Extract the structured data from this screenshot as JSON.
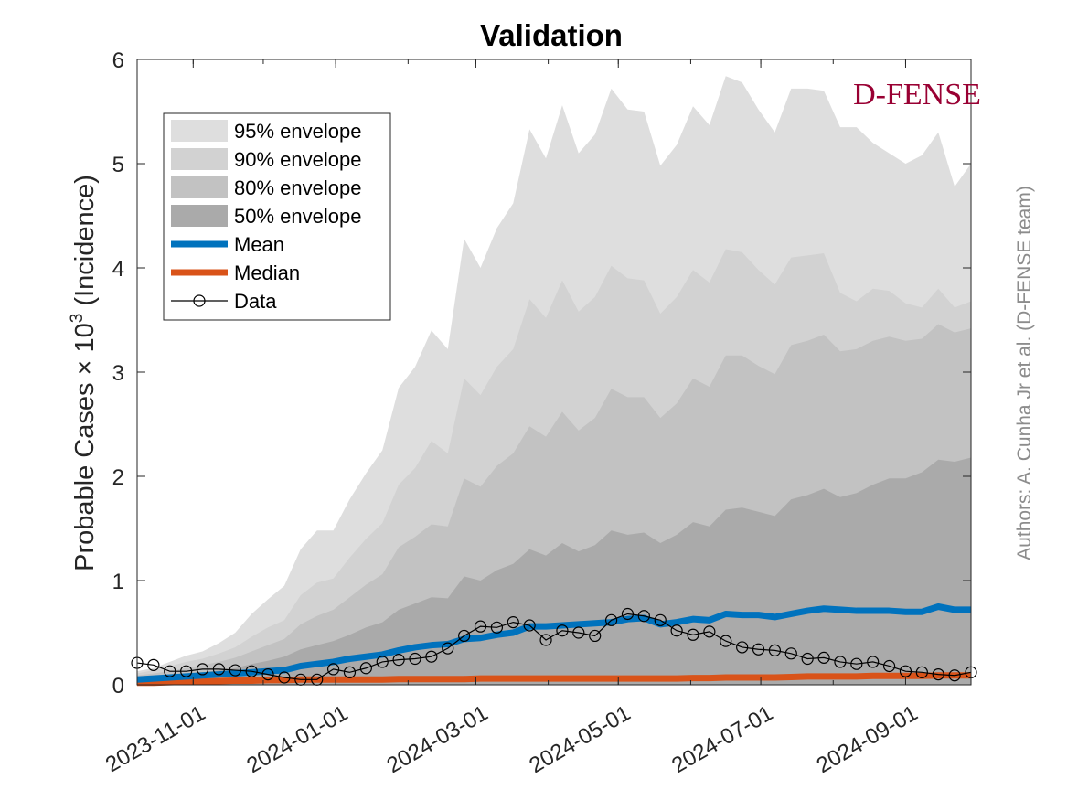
{
  "chart_data": {
    "type": "area",
    "title": "Validation",
    "ylabel_main": "Probable Cases × 10",
    "ylabel_exp": "3",
    "ylabel_tail": " (Incidence)",
    "xlabel": "",
    "ylim": [
      0,
      6
    ],
    "yticks": [
      "0",
      "1",
      "2",
      "3",
      "4",
      "5",
      "6"
    ],
    "xlim": [
      "2023-10-08",
      "2024-09-29"
    ],
    "xticks": [
      "2023-11-01",
      "2024-01-01",
      "2024-03-01",
      "2024-05-01",
      "2024-07-01",
      "2024-09-01"
    ],
    "dates": [
      "2023-10-08",
      "2023-10-15",
      "2023-10-22",
      "2023-10-29",
      "2023-11-05",
      "2023-11-12",
      "2023-11-19",
      "2023-11-26",
      "2023-12-03",
      "2023-12-10",
      "2023-12-17",
      "2023-12-24",
      "2023-12-31",
      "2024-01-07",
      "2024-01-14",
      "2024-01-21",
      "2024-01-28",
      "2024-02-04",
      "2024-02-11",
      "2024-02-18",
      "2024-02-25",
      "2024-03-03",
      "2024-03-10",
      "2024-03-17",
      "2024-03-24",
      "2024-03-31",
      "2024-04-07",
      "2024-04-14",
      "2024-04-21",
      "2024-04-28",
      "2024-05-05",
      "2024-05-12",
      "2024-05-19",
      "2024-05-26",
      "2024-06-02",
      "2024-06-09",
      "2024-06-16",
      "2024-06-23",
      "2024-06-30",
      "2024-07-07",
      "2024-07-14",
      "2024-07-21",
      "2024-07-28",
      "2024-08-04",
      "2024-08-11",
      "2024-08-18",
      "2024-08-25",
      "2024-09-01",
      "2024-09-08",
      "2024-09-15",
      "2024-09-22",
      "2024-09-29"
    ],
    "series": [
      {
        "name": "95% envelope",
        "color": "#dedede",
        "upper": [
          0.13,
          0.16,
          0.22,
          0.28,
          0.32,
          0.4,
          0.5,
          0.68,
          0.82,
          0.95,
          1.3,
          1.48,
          1.48,
          1.78,
          2.03,
          2.25,
          2.85,
          3.05,
          3.4,
          3.22,
          4.28,
          4.0,
          4.38,
          4.62,
          5.33,
          5.05,
          5.56,
          5.1,
          5.28,
          5.72,
          5.52,
          5.5,
          4.98,
          5.18,
          5.55,
          5.37,
          5.84,
          5.78,
          5.52,
          5.3,
          5.72,
          5.72,
          5.7,
          5.35,
          5.35,
          5.2,
          5.1,
          5.0,
          5.08,
          5.3,
          4.78,
          5.0
        ]
      },
      {
        "name": "90% envelope",
        "color": "#d2d2d2",
        "upper": [
          0.11,
          0.14,
          0.18,
          0.22,
          0.25,
          0.3,
          0.36,
          0.46,
          0.55,
          0.62,
          0.86,
          0.98,
          1.02,
          1.22,
          1.4,
          1.55,
          1.92,
          2.08,
          2.34,
          2.22,
          2.94,
          2.78,
          3.05,
          3.22,
          3.7,
          3.52,
          3.88,
          3.58,
          3.72,
          4.02,
          3.9,
          3.88,
          3.56,
          3.72,
          3.98,
          3.86,
          4.18,
          4.15,
          3.98,
          3.84,
          4.1,
          4.12,
          4.14,
          3.76,
          3.68,
          3.8,
          3.78,
          3.66,
          3.62,
          3.8,
          3.62,
          3.68
        ]
      },
      {
        "name": "80% envelope",
        "color": "#c2c2c2",
        "upper": [
          0.09,
          0.11,
          0.13,
          0.16,
          0.19,
          0.22,
          0.26,
          0.32,
          0.38,
          0.44,
          0.58,
          0.66,
          0.72,
          0.84,
          0.96,
          1.06,
          1.32,
          1.42,
          1.54,
          1.52,
          1.98,
          1.9,
          2.1,
          2.22,
          2.48,
          2.38,
          2.62,
          2.44,
          2.56,
          2.84,
          2.76,
          2.76,
          2.56,
          2.7,
          2.94,
          2.86,
          3.16,
          3.16,
          3.06,
          2.98,
          3.26,
          3.3,
          3.36,
          3.2,
          3.22,
          3.3,
          3.34,
          3.3,
          3.32,
          3.46,
          3.38,
          3.42
        ]
      },
      {
        "name": "50% envelope",
        "color": "#aaaaaa",
        "upper": [
          0.06,
          0.07,
          0.08,
          0.1,
          0.12,
          0.14,
          0.16,
          0.2,
          0.23,
          0.27,
          0.34,
          0.38,
          0.42,
          0.48,
          0.55,
          0.6,
          0.72,
          0.78,
          0.84,
          0.83,
          1.04,
          1.0,
          1.1,
          1.16,
          1.3,
          1.24,
          1.36,
          1.28,
          1.34,
          1.48,
          1.44,
          1.46,
          1.36,
          1.44,
          1.56,
          1.52,
          1.68,
          1.7,
          1.66,
          1.62,
          1.78,
          1.82,
          1.88,
          1.8,
          1.84,
          1.92,
          1.98,
          1.98,
          2.04,
          2.16,
          2.14,
          2.18
        ]
      },
      {
        "name": "Mean",
        "color": "#0072bd",
        "values": [
          0.05,
          0.06,
          0.07,
          0.08,
          0.09,
          0.1,
          0.11,
          0.12,
          0.13,
          0.14,
          0.18,
          0.2,
          0.22,
          0.25,
          0.27,
          0.29,
          0.33,
          0.36,
          0.38,
          0.39,
          0.44,
          0.45,
          0.48,
          0.5,
          0.56,
          0.56,
          0.57,
          0.58,
          0.59,
          0.6,
          0.63,
          0.64,
          0.58,
          0.6,
          0.63,
          0.62,
          0.68,
          0.67,
          0.67,
          0.65,
          0.68,
          0.71,
          0.73,
          0.72,
          0.71,
          0.71,
          0.71,
          0.7,
          0.7,
          0.75,
          0.72,
          0.72
        ]
      },
      {
        "name": "Median",
        "color": "#d95319",
        "values": [
          0.02,
          0.02,
          0.025,
          0.03,
          0.03,
          0.035,
          0.04,
          0.04,
          0.045,
          0.045,
          0.05,
          0.05,
          0.05,
          0.05,
          0.05,
          0.05,
          0.055,
          0.055,
          0.055,
          0.055,
          0.055,
          0.06,
          0.06,
          0.06,
          0.06,
          0.06,
          0.06,
          0.06,
          0.06,
          0.06,
          0.06,
          0.06,
          0.06,
          0.06,
          0.065,
          0.065,
          0.07,
          0.07,
          0.07,
          0.07,
          0.075,
          0.08,
          0.08,
          0.08,
          0.08,
          0.085,
          0.085,
          0.085,
          0.085,
          0.09,
          0.09,
          0.09
        ]
      },
      {
        "name": "Data",
        "color": "#000000",
        "values": [
          0.21,
          0.19,
          0.13,
          0.13,
          0.15,
          0.15,
          0.14,
          0.13,
          0.1,
          0.07,
          0.05,
          0.05,
          0.15,
          0.12,
          0.16,
          0.22,
          0.24,
          0.25,
          0.27,
          0.35,
          0.47,
          0.56,
          0.55,
          0.6,
          0.57,
          0.43,
          0.52,
          0.5,
          0.47,
          0.62,
          0.68,
          0.66,
          0.62,
          0.52,
          0.48,
          0.51,
          0.42,
          0.36,
          0.34,
          0.33,
          0.3,
          0.25,
          0.26,
          0.22,
          0.2,
          0.22,
          0.18,
          0.13,
          0.12,
          0.1,
          0.09,
          0.12
        ]
      }
    ],
    "legend": {
      "placement": "upper-left",
      "entries": [
        "95% envelope",
        "90% envelope",
        "80% envelope",
        "50% envelope",
        "Mean",
        "Median",
        "Data"
      ]
    },
    "grid": false
  },
  "logo": "D-FENSE",
  "author": "Authors: A. Cunha Jr et al. (D-FENSE team)",
  "colors": {
    "axis": "#262626",
    "logo": "#990033",
    "author": "#8c8c8c",
    "data_marker_fill": "#ffffff"
  }
}
